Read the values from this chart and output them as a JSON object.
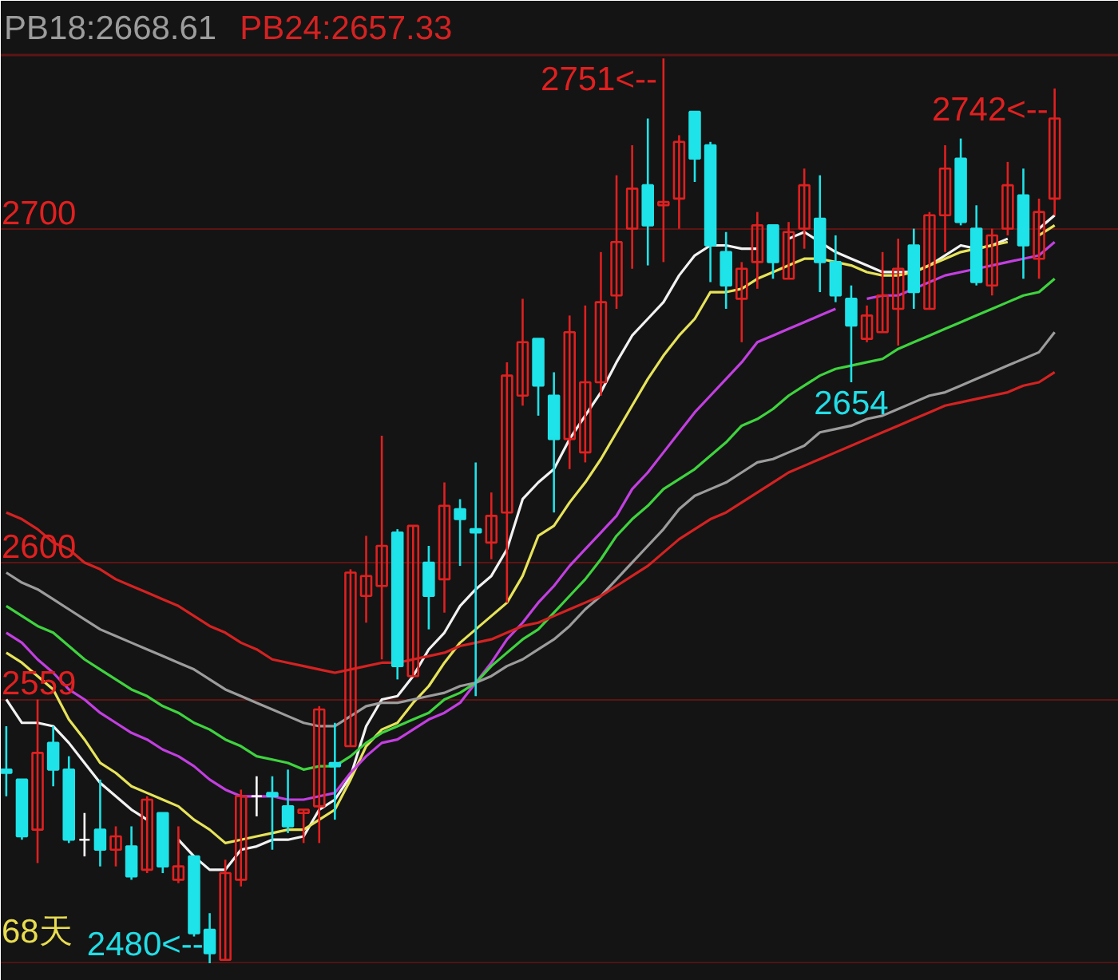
{
  "chart_data": {
    "type": "candlestick",
    "categories": [
      null,
      null,
      null,
      null,
      null,
      null,
      null,
      null,
      null,
      null,
      null,
      null,
      null,
      null,
      null,
      null,
      null,
      null,
      null,
      null,
      null,
      null,
      null,
      null,
      null,
      null,
      null,
      null,
      null,
      null,
      null,
      null,
      null,
      null,
      null,
      null,
      null,
      null,
      null,
      null,
      null,
      null,
      null,
      null,
      null,
      null,
      null,
      null,
      null,
      null,
      null,
      null,
      null,
      null,
      null,
      null,
      null,
      null,
      null,
      null,
      null,
      null,
      null,
      null,
      null,
      null,
      null,
      null
    ],
    "ohlc": [
      [
        2538,
        2551,
        2530,
        2537
      ],
      [
        2535,
        2535,
        2517,
        2518
      ],
      [
        2520,
        2559,
        2510,
        2543
      ],
      [
        2546,
        2551,
        2533,
        2538
      ],
      [
        2538,
        2542,
        2516,
        2517
      ],
      [
        2517,
        2525,
        2512,
        2517
      ],
      [
        2520,
        2535,
        2509,
        2514
      ],
      [
        2514,
        2521,
        2509,
        2518
      ],
      [
        2515,
        2521,
        2505,
        2506
      ],
      [
        2508,
        2530,
        2507,
        2529
      ],
      [
        2525,
        2525,
        2507,
        2509
      ],
      [
        2505,
        2521,
        2504,
        2509
      ],
      [
        2512,
        2512,
        2488,
        2489
      ],
      [
        2490,
        2495,
        2480,
        2483
      ],
      [
        2481,
        2511,
        2481,
        2507
      ],
      [
        2505,
        2532,
        2503,
        2530
      ],
      [
        2530,
        2536,
        2524,
        2530
      ],
      [
        2531,
        2536,
        2514,
        2530
      ],
      [
        2527,
        2538,
        2519,
        2521
      ],
      [
        2525,
        2526,
        2516,
        2526
      ],
      [
        2527,
        2557,
        2516,
        2556
      ],
      [
        2540,
        2552,
        2523,
        2539
      ],
      [
        2545,
        2598,
        2545,
        2597
      ],
      [
        2590,
        2608,
        2582,
        2596
      ],
      [
        2593,
        2638,
        2571,
        2605
      ],
      [
        2609,
        2610,
        2565,
        2569
      ],
      [
        2566,
        2611,
        2566,
        2611
      ],
      [
        2600,
        2605,
        2580,
        2590
      ],
      [
        2595,
        2624,
        2585,
        2617
      ],
      [
        2616,
        2619,
        2599,
        2613
      ],
      [
        2610,
        2630,
        2560,
        2609
      ],
      [
        2606,
        2621,
        2601,
        2614
      ],
      [
        2615,
        2660,
        2588,
        2656
      ],
      [
        2650,
        2679,
        2647,
        2666
      ],
      [
        2667,
        2667,
        2644,
        2653
      ],
      [
        2650,
        2657,
        2615,
        2637
      ],
      [
        2637,
        2674,
        2628,
        2669
      ],
      [
        2633,
        2677,
        2630,
        2654
      ],
      [
        2654,
        2693,
        2650,
        2678
      ],
      [
        2680,
        2716,
        2676,
        2696
      ],
      [
        2700,
        2725,
        2688,
        2712
      ],
      [
        2713,
        2733,
        2689,
        2701
      ],
      [
        2707,
        2751,
        2690,
        2708
      ],
      [
        2709,
        2728,
        2700,
        2726
      ],
      [
        2735,
        2735,
        2714,
        2721
      ],
      [
        2725,
        2726,
        2684,
        2695
      ],
      [
        2693,
        2699,
        2676,
        2683
      ],
      [
        2679,
        2690,
        2666,
        2688
      ],
      [
        2690,
        2705,
        2682,
        2701
      ],
      [
        2701,
        2701,
        2685,
        2690
      ],
      [
        2685,
        2702,
        2685,
        2699
      ],
      [
        2700,
        2718,
        2694,
        2713
      ],
      [
        2703,
        2716,
        2681,
        2690
      ],
      [
        2690,
        2698,
        2678,
        2680
      ],
      [
        2679,
        2683,
        2654,
        2671
      ],
      [
        2667,
        2677,
        2666,
        2674
      ],
      [
        2669,
        2693,
        2669,
        2680
      ],
      [
        2676,
        2697,
        2665,
        2688
      ],
      [
        2695,
        2700,
        2676,
        2681
      ],
      [
        2676,
        2705,
        2676,
        2704
      ],
      [
        2704,
        2725,
        2693,
        2718
      ],
      [
        2721,
        2727,
        2701,
        2702
      ],
      [
        2700,
        2707,
        2683,
        2684
      ],
      [
        2683,
        2700,
        2680,
        2698
      ],
      [
        2700,
        2720,
        2698,
        2713
      ],
      [
        2710,
        2718,
        2685,
        2695
      ],
      [
        2691,
        2709,
        2685,
        2705
      ],
      [
        2709,
        2742,
        2704,
        2733
      ]
    ],
    "colors": [
      "#1ee3e8",
      "#1ee3e8",
      "#e02020",
      "#1ee3e8",
      "#1ee3e8",
      "#ffffff",
      "#1ee3e8",
      "#e02020",
      "#1ee3e8",
      "#e02020",
      "#1ee3e8",
      "#e02020",
      "#1ee3e8",
      "#1ee3e8",
      "#e02020",
      "#e02020",
      "#ffffff",
      "#1ee3e8",
      "#1ee3e8",
      "#e02020",
      "#e02020",
      "#1ee3e8",
      "#e02020",
      "#e02020",
      "#e02020",
      "#1ee3e8",
      "#e02020",
      "#1ee3e8",
      "#e02020",
      "#1ee3e8",
      "#1ee3e8",
      "#e02020",
      "#e02020",
      "#e02020",
      "#1ee3e8",
      "#1ee3e8",
      "#e02020",
      "#e02020",
      "#e02020",
      "#e02020",
      "#e02020",
      "#1ee3e8",
      "#e02020",
      "#e02020",
      "#1ee3e8",
      "#1ee3e8",
      "#1ee3e8",
      "#e02020",
      "#e02020",
      "#1ee3e8",
      "#e02020",
      "#e02020",
      "#1ee3e8",
      "#1ee3e8",
      "#1ee3e8",
      "#e02020",
      "#e02020",
      "#e02020",
      "#1ee3e8",
      "#e02020",
      "#e02020",
      "#1ee3e8",
      "#1ee3e8",
      "#e02020",
      "#e02020",
      "#1ee3e8",
      "#e02020",
      "#e02020"
    ],
    "series": [
      {
        "type": "line",
        "color": "#f2f2f2",
        "values": [
          2559,
          2552,
          2552,
          2551,
          2546,
          2540,
          2534,
          2530,
          2526,
          2523,
          null,
          2517,
          2512,
          2508,
          2508,
          2514,
          2515,
          2517,
          2517,
          2518,
          2526,
          2529,
          2536,
          2551,
          2559,
          2560,
          2566,
          2574,
          2579,
          2587,
          2592,
          2596,
          2604,
          2619,
          2624,
          2628,
          2637,
          2644,
          2651,
          2660,
          2668,
          2673,
          2678,
          2686,
          2692,
          2695,
          2695,
          2694,
          2694,
          null,
          2697,
          2699,
          2696,
          2693,
          2691,
          2689,
          2687,
          2687,
          2687,
          2689,
          2692,
          2695,
          2694,
          2695,
          2697,
          null,
          2700,
          2704
        ]
      },
      {
        "type": "line",
        "color": "#e6e35a",
        "values": [
          2573,
          2570,
          2566,
          2562,
          2553,
          2547,
          2540,
          2537,
          2533,
          2531,
          2529,
          2527,
          2523,
          2520,
          2516,
          2517,
          2518,
          2519,
          2520,
          2520,
          2523,
          2526,
          2535,
          2545,
          2550,
          2552,
          2558,
          2563,
          2570,
          2576,
          2580,
          2584,
          2588,
          2596,
          2608,
          2611,
          2618,
          2624,
          2631,
          2639,
          2647,
          2655,
          2662,
          2668,
          2673,
          2681,
          2681,
          2682,
          2685,
          2687,
          2689,
          2691,
          2691,
          2690,
          2689,
          2687,
          2686,
          2686,
          2687,
          2689,
          2691,
          2693,
          2694,
          2695,
          2696,
          null,
          2698,
          2701
        ]
      },
      {
        "type": "line",
        "color": "#c23fe0",
        "values": [
          2579,
          2576,
          2571,
          2567,
          2562,
          2559,
          2555,
          2552,
          2549,
          2547,
          2544,
          2542,
          2539,
          2535,
          2532,
          2530,
          2530,
          2530,
          2529,
          2529,
          2530,
          2531,
          2537,
          2542,
          2546,
          2547,
          2550,
          2553,
          2555,
          2558,
          2564,
          2570,
          2577,
          2582,
          2588,
          2593,
          2599,
          2604,
          2609,
          2614,
          2622,
          2627,
          2633,
          2639,
          2645,
          2650,
          2655,
          2660,
          2666,
          2668,
          2670,
          2672,
          2674,
          2676,
          null,
          2679,
          2680,
          2680,
          2682,
          2684,
          2686,
          2687,
          2688,
          2689,
          2690,
          2691,
          2692,
          2696
        ]
      },
      {
        "type": "line",
        "color": "#3fd33f",
        "values": [
          2587,
          2584,
          2581,
          2579,
          2575,
          2571,
          2568,
          2565,
          2562,
          2560,
          2557,
          2555,
          2552,
          2550,
          2547,
          2545,
          2542,
          2541,
          2540,
          2538,
          2539,
          2539,
          2542,
          2546,
          2549,
          2551,
          2553,
          2555,
          2559,
          2561,
          2564,
          2569,
          2573,
          2577,
          2580,
          2585,
          2590,
          2595,
          2601,
          2608,
          2613,
          2617,
          2622,
          2625,
          2628,
          2632,
          2636,
          2641,
          2643,
          2646,
          2650,
          2653,
          2656,
          2658,
          2659,
          2660,
          2661,
          2664,
          2666,
          2668,
          2670,
          2672,
          2674,
          2676,
          2678,
          2680,
          2681,
          2685
        ]
      },
      {
        "type": "line",
        "name": "PB18:2668.61",
        "color": "#9c9c9c",
        "values": [
          2597,
          2594,
          2592,
          2589,
          2586,
          2583,
          2580,
          2578,
          2576,
          2574,
          2572,
          2570,
          2568,
          2565,
          2562,
          2560,
          2558,
          2556,
          2554,
          2552,
          2551,
          2551,
          2554,
          2557,
          2558,
          2558,
          2559,
          2560,
          2561,
          2563,
          2564,
          2566,
          2569,
          2571,
          2574,
          2577,
          2581,
          2586,
          2590,
          2595,
          2600,
          2605,
          2610,
          2616,
          2620,
          2622,
          2624,
          2627,
          2630,
          2631,
          2633,
          2635,
          2639,
          2640,
          2641,
          2643,
          2644,
          2646,
          2648,
          2650,
          2651,
          2653,
          2655,
          2657,
          2659,
          2661,
          2663,
          2669
        ]
      },
      {
        "type": "line",
        "name": "PB24:2657.33",
        "color": "#d42222",
        "values": [
          2615,
          2613,
          2610,
          2606,
          2604,
          2600,
          2598,
          2595,
          2593,
          2591,
          2589,
          2587,
          2584,
          2581,
          2579,
          2576,
          2574,
          2571,
          2570,
          2569,
          2568,
          2567,
          2568,
          2569,
          2570,
          2570,
          2571,
          2572,
          2573,
          2575,
          2576,
          2577,
          2579,
          2581,
          2582,
          2584,
          2586,
          2588,
          2590,
          2593,
          2596,
          2599,
          2603,
          2607,
          2610,
          2613,
          2615,
          2618,
          2621,
          2624,
          2627,
          2629,
          2631,
          2633,
          2635,
          2637,
          2639,
          2641,
          2643,
          2645,
          2647,
          2648,
          2649,
          2650,
          2651,
          2653,
          2654,
          2657
        ]
      }
    ],
    "value_labels": [
      null,
      null,
      null,
      null,
      null,
      null,
      null,
      null,
      null,
      null,
      null,
      null,
      null,
      "2480<--",
      null,
      null,
      null,
      null,
      null,
      null,
      null,
      null,
      null,
      null,
      null,
      null,
      null,
      null,
      null,
      null,
      null,
      null,
      null,
      null,
      null,
      null,
      null,
      null,
      null,
      null,
      null,
      null,
      "2751<--",
      null,
      null,
      null,
      null,
      null,
      null,
      null,
      null,
      null,
      null,
      null,
      "2654",
      null,
      null,
      null,
      null,
      null,
      null,
      null,
      null,
      null,
      null,
      null,
      null,
      "2742<--"
    ],
    "ylim": [
      2480,
      2752
    ],
    "yticks": [
      2559,
      2600,
      2700
    ],
    "grid": "y",
    "annotations": [
      "68天"
    ]
  }
}
